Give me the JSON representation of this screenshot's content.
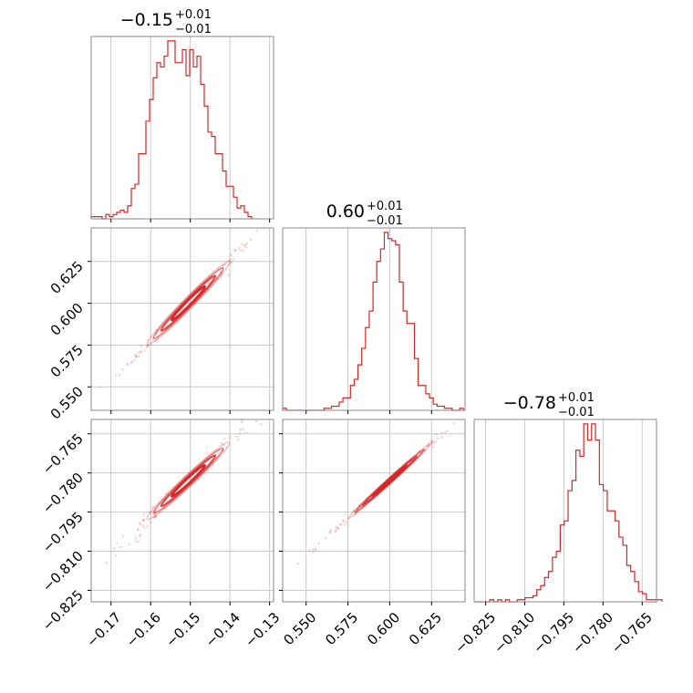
{
  "chart_data": {
    "type": "corner",
    "color": "#d62728",
    "grid": true,
    "parameters": [
      {
        "title_main": "−0.15",
        "title_sup": "+0.01",
        "title_sub": "−0.01",
        "range": [
          -0.175,
          -0.129
        ],
        "ticks": [
          -0.17,
          -0.16,
          -0.15,
          -0.14,
          -0.13
        ],
        "tick_labels": [
          "−0.17",
          "−0.16",
          "−0.15",
          "−0.14",
          "−0.13"
        ],
        "hist": {
          "start": -0.175,
          "step": 0.00092,
          "counts": [
            1,
            1,
            1,
            0,
            2,
            1,
            2,
            3,
            4,
            3,
            6,
            14,
            16,
            30,
            30,
            45,
            55,
            65,
            72,
            70,
            75,
            82,
            82,
            72,
            72,
            78,
            66,
            78,
            70,
            75,
            62,
            52,
            40,
            38,
            30,
            30,
            22,
            15,
            15,
            10,
            5,
            6,
            3,
            1
          ]
        }
      },
      {
        "title_main": "0.60",
        "title_sup": "+0.01",
        "title_sub": "−0.01",
        "range": [
          0.536,
          0.645
        ],
        "ticks": [
          0.55,
          0.575,
          0.6,
          0.625
        ],
        "tick_labels": [
          "0.550",
          "0.575",
          "0.600",
          "0.625"
        ],
        "hist": {
          "start": 0.536,
          "step": 0.00225,
          "counts": [
            1,
            0,
            0,
            0,
            0,
            0,
            0,
            0,
            0,
            0,
            0,
            1,
            1,
            2,
            2,
            4,
            6,
            6,
            12,
            15,
            22,
            30,
            40,
            48,
            62,
            72,
            78,
            86,
            83,
            82,
            80,
            62,
            48,
            42,
            42,
            25,
            12,
            12,
            8,
            6,
            3,
            2,
            2,
            1,
            1,
            0,
            0,
            1
          ]
        }
      },
      {
        "title_main": "−0.78",
        "title_sup": "+0.01",
        "title_sub": "−0.01",
        "range": [
          -0.8294,
          -0.7595
        ],
        "ticks": [
          -0.825,
          -0.81,
          -0.795,
          -0.78,
          -0.765
        ],
        "tick_labels": [
          "−0.825",
          "−0.810",
          "−0.795",
          "−0.780",
          "−0.765"
        ],
        "hist": {
          "start": -0.8294,
          "step": 0.0015,
          "counts": [
            0,
            0,
            0,
            0,
            1,
            0,
            1,
            0,
            1,
            0,
            0,
            1,
            1,
            2,
            2,
            3,
            6,
            8,
            12,
            15,
            22,
            25,
            38,
            40,
            55,
            60,
            75,
            72,
            88,
            80,
            88,
            80,
            58,
            55,
            45,
            45,
            40,
            32,
            28,
            18,
            15,
            10,
            5,
            4,
            1,
            1,
            1,
            1
          ]
        }
      }
    ],
    "pairs": [
      {
        "x": 0,
        "y": 1
      },
      {
        "x": 0,
        "y": 2
      },
      {
        "x": 1,
        "y": 2
      }
    ]
  }
}
